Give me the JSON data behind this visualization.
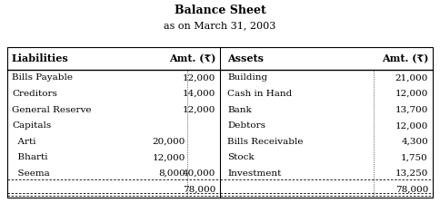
{
  "title": "Balance Sheet",
  "subtitle": "as on March 31, 2003",
  "headers_left": [
    "Liabilities",
    "Amt. (₹)"
  ],
  "headers_right": [
    "Assets",
    "Amt. (₹)"
  ],
  "liabilities": [
    {
      "name": "Bills Payable",
      "sub_amt": "",
      "amt": "12,000"
    },
    {
      "name": "Creditors",
      "sub_amt": "",
      "amt": "14,000"
    },
    {
      "name": "General Reserve",
      "sub_amt": "",
      "amt": "12,000"
    },
    {
      "name": "Capitals",
      "sub_amt": "",
      "amt": ""
    },
    {
      "name": "  Arti",
      "sub_amt": "20,000",
      "amt": ""
    },
    {
      "name": "  Bharti",
      "sub_amt": "12,000",
      "amt": ""
    },
    {
      "name": "  Seema",
      "sub_amt": "8,000",
      "amt": "40,000"
    },
    {
      "name": "",
      "sub_amt": "",
      "amt": "78,000"
    }
  ],
  "assets": [
    {
      "name": "Building",
      "amt": "21,000"
    },
    {
      "name": "Cash in Hand",
      "amt": "12,000"
    },
    {
      "name": "Bank",
      "amt": "13,700"
    },
    {
      "name": "Debtors",
      "amt": "12,000"
    },
    {
      "name": "Bills Receivable",
      "amt": "4,300"
    },
    {
      "name": "Stock",
      "amt": "1,750"
    },
    {
      "name": "Investment",
      "amt": "13,250"
    },
    {
      "name": "",
      "amt": "78,000"
    }
  ],
  "bg_color": "#ffffff",
  "text_color": "#000000",
  "title_fontsize": 9,
  "subtitle_fontsize": 8,
  "header_fontsize": 8,
  "data_fontsize": 7.5,
  "figw": 4.84,
  "figh": 2.24
}
